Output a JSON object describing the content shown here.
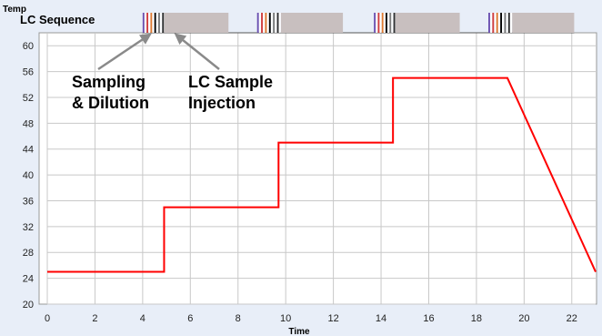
{
  "chart_data": {
    "type": "line",
    "title": "",
    "xlabel": "Time",
    "ylabel": "Temp",
    "xlim": [
      0,
      23
    ],
    "ylim": [
      20,
      62
    ],
    "x_ticks": [
      0,
      2,
      4,
      6,
      8,
      10,
      12,
      14,
      16,
      18,
      20,
      22
    ],
    "y_ticks": [
      20,
      24,
      28,
      32,
      36,
      40,
      44,
      48,
      52,
      56,
      60
    ],
    "grid": true,
    "series": [
      {
        "color": "#ff0000",
        "x": [
          0,
          4.9,
          4.9,
          9.7,
          9.7,
          14.5,
          14.5,
          19.3,
          23
        ],
        "y": [
          25,
          25,
          35,
          35,
          45,
          45,
          55,
          55,
          25
        ]
      }
    ],
    "lc_sequence": {
      "label": "LC Sequence",
      "blocks": [
        {
          "start": 4.0,
          "end": 4.9,
          "kind": "sampling"
        },
        {
          "start": 4.9,
          "end": 7.6,
          "kind": "injection"
        },
        {
          "start": 8.8,
          "end": 9.8,
          "kind": "sampling"
        },
        {
          "start": 9.8,
          "end": 12.4,
          "kind": "injection"
        },
        {
          "start": 13.7,
          "end": 14.6,
          "kind": "sampling"
        },
        {
          "start": 14.6,
          "end": 17.3,
          "kind": "injection"
        },
        {
          "start": 18.5,
          "end": 19.5,
          "kind": "sampling"
        },
        {
          "start": 19.5,
          "end": 22.1,
          "kind": "injection"
        }
      ],
      "stripe_colors": [
        "#6a4fb0",
        "#3a64c8",
        "#d23c3c",
        "#a0a0a0",
        "#e07a30",
        "#5aa050",
        "#000000",
        "#b070c0",
        "#7a7a7a",
        "#e04080",
        "#303030"
      ],
      "injection_color": "#c8bfbf"
    },
    "annotations": [
      {
        "lines": [
          "Sampling",
          "& Dilution"
        ],
        "arrow_to_x": 4.3
      },
      {
        "lines": [
          "LC Sample",
          "Injection"
        ],
        "arrow_to_x": 5.4
      }
    ],
    "colors": {
      "background": "#e8eef8",
      "plot_background": "#ffffff",
      "grid": "#c8c8c8",
      "line": "#ff0000",
      "arrow": "#8a8a8a"
    }
  }
}
